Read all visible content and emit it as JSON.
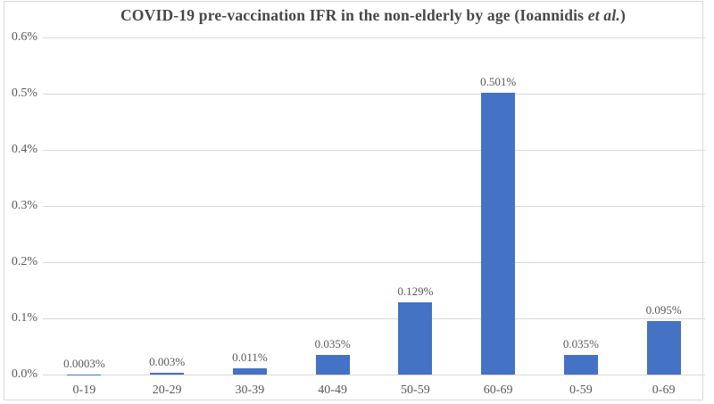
{
  "chart_data": {
    "type": "bar",
    "title": {
      "full": "COVID-19 pre-vaccination IFR in the non-elderly by age (Ioannidis et al.)",
      "prefix": "COVID-19 pre-vaccination IFR in the non-elderly by age (Ioannidis ",
      "italic": "et al.",
      "suffix": ")"
    },
    "categories": [
      "0-19",
      "20-29",
      "30-39",
      "40-49",
      "50-59",
      "60-69",
      "0-59",
      "0-69"
    ],
    "values": [
      0.0003,
      0.003,
      0.011,
      0.035,
      0.129,
      0.501,
      0.035,
      0.095
    ],
    "data_labels": [
      "0.0003%",
      "0.003%",
      "0.011%",
      "0.035%",
      "0.129%",
      "0.501%",
      "0.035%",
      "0.095%"
    ],
    "y_ticks": [
      "0.6%",
      "0.5%",
      "0.4%",
      "0.3%",
      "0.2%",
      "0.1%",
      "0.0%"
    ],
    "ylim": [
      0,
      0.6
    ],
    "xlabel": "",
    "ylabel": "",
    "legend_position": "none",
    "grid": "horizontal",
    "colors": {
      "bar": "#4472C4",
      "gridline": "#D9D9D9",
      "border": "#D9D9D9",
      "tick_text": "#595959",
      "title_text": "#474747"
    }
  }
}
